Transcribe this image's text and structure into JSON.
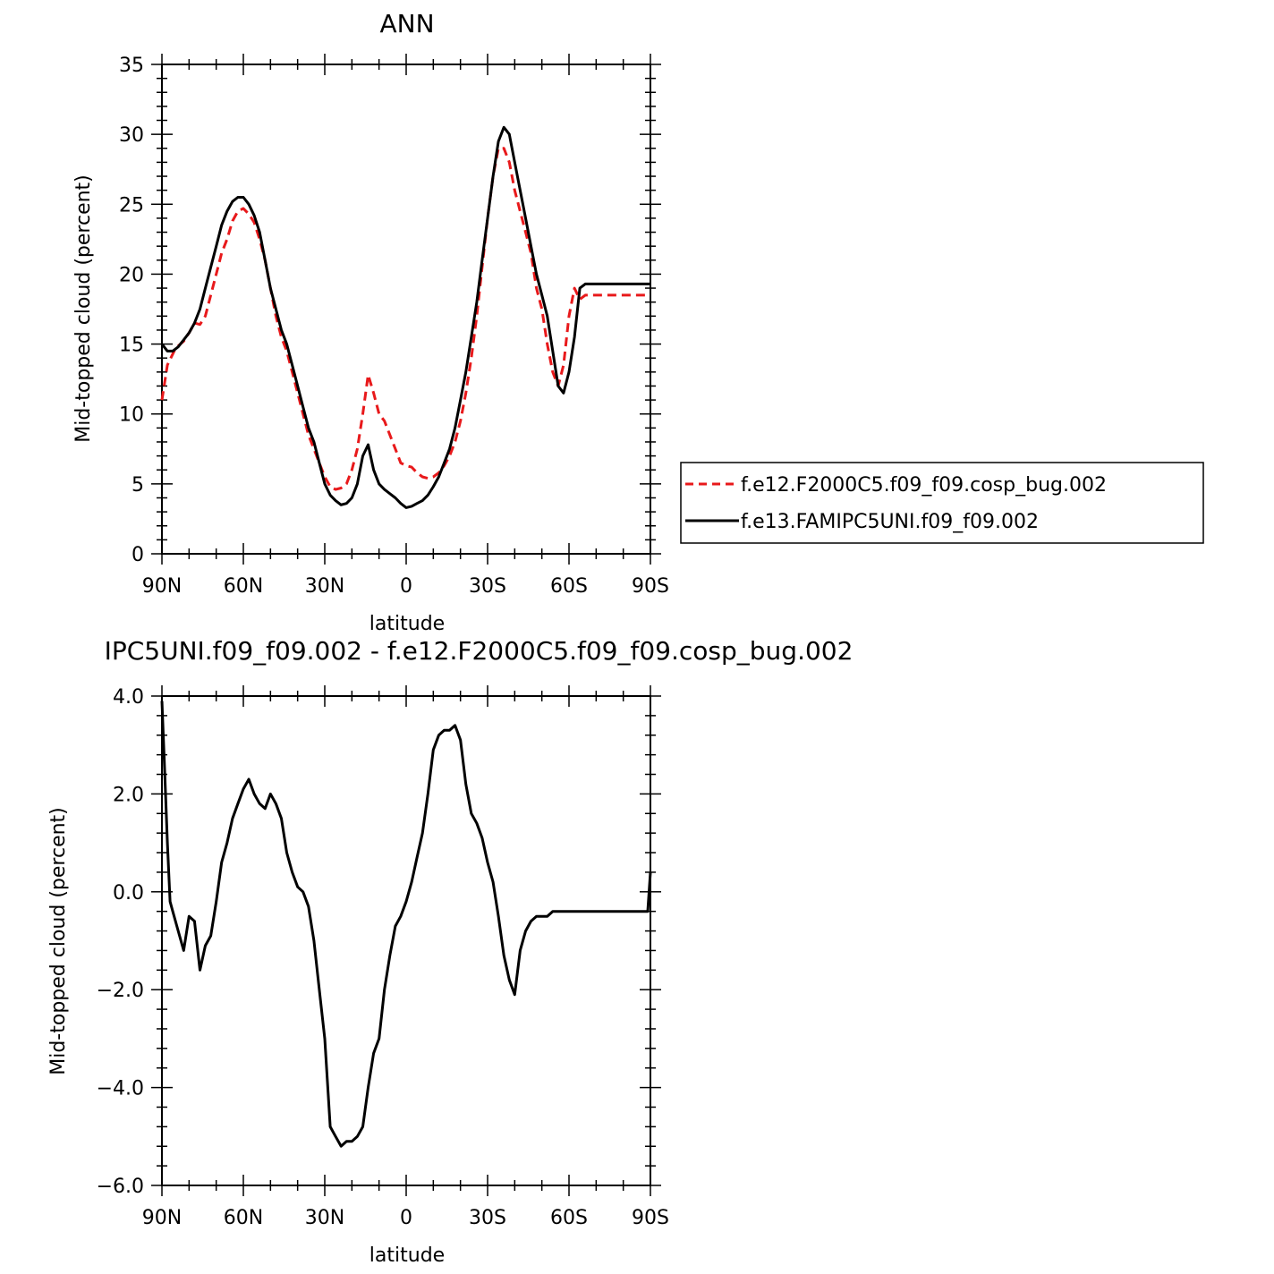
{
  "chart_data": [
    {
      "type": "line",
      "title": "ANN",
      "xlabel": "latitude",
      "ylabel": "Mid-topped cloud (percent)",
      "xlim": [
        -90,
        90
      ],
      "ylim": [
        0,
        35
      ],
      "xticks": [
        -90,
        -60,
        -30,
        0,
        30,
        60,
        90
      ],
      "xtick_labels": [
        "90N",
        "60N",
        "30N",
        "0",
        "30S",
        "60S",
        "90S"
      ],
      "yticks": [
        0,
        5,
        10,
        15,
        20,
        25,
        30,
        35
      ],
      "ytick_labels": [
        "0",
        "5",
        "10",
        "15",
        "20",
        "25",
        "30",
        "35"
      ],
      "legend": {
        "position": "right",
        "entries": [
          {
            "label": "f.e12.F2000C5.f09_f09.cosp_bug.002",
            "color": "#e8191b",
            "dash": "dashed"
          },
          {
            "label": "f.e13.FAMIPC5UNI.f09_f09.002",
            "color": "#000000",
            "dash": "solid"
          }
        ]
      },
      "series": [
        {
          "name": "f.e12.F2000C5.f09_f09.cosp_bug.002",
          "color": "#e8191b",
          "dash": "dashed",
          "x": [
            -90,
            -88,
            -85,
            -82,
            -80,
            -78,
            -76,
            -74,
            -72,
            -70,
            -68,
            -66,
            -64,
            -62,
            -60,
            -58,
            -56,
            -54,
            -52,
            -50,
            -48,
            -46,
            -44,
            -42,
            -40,
            -38,
            -36,
            -34,
            -32,
            -30,
            -28,
            -26,
            -24,
            -22,
            -20,
            -18,
            -16,
            -14,
            -12,
            -10,
            -8,
            -6,
            -4,
            -2,
            0,
            2,
            4,
            6,
            8,
            10,
            12,
            14,
            16,
            18,
            20,
            22,
            24,
            26,
            28,
            30,
            32,
            34,
            36,
            38,
            40,
            42,
            44,
            46,
            48,
            50,
            52,
            54,
            56,
            58,
            60,
            62,
            64,
            66,
            68,
            70,
            72,
            74,
            76,
            78,
            80,
            82,
            84,
            86,
            88,
            90
          ],
          "y": [
            11,
            13.5,
            14.7,
            15.2,
            15.8,
            16.5,
            16.4,
            17,
            18.5,
            20,
            21.5,
            22.5,
            23.8,
            24.5,
            24.7,
            24.3,
            23.7,
            22.5,
            21,
            19,
            17,
            15.5,
            14.5,
            13,
            11.5,
            10,
            8.5,
            7.5,
            6.5,
            5.5,
            4.8,
            4.6,
            4.7,
            5,
            6,
            7.5,
            10,
            12.8,
            11.5,
            10,
            9.5,
            8.5,
            7.5,
            6.5,
            6.3,
            6.2,
            5.8,
            5.5,
            5.4,
            5.5,
            5.8,
            6.3,
            7,
            8,
            9.5,
            11.5,
            14,
            17,
            20.5,
            24,
            27,
            29,
            29,
            28,
            26,
            24.5,
            23,
            21.5,
            19,
            17.5,
            15,
            13,
            12,
            13.5,
            17,
            19,
            18.2,
            18.5,
            18.5,
            18.5,
            18.5,
            18.5,
            18.5,
            18.5,
            18.5,
            18.5,
            18.5,
            18.5,
            18.5,
            18.5
          ]
        },
        {
          "name": "f.e13.FAMIPC5UNI.f09_f09.002",
          "color": "#000000",
          "dash": "solid",
          "x": [
            -90,
            -88,
            -86,
            -84,
            -82,
            -80,
            -78,
            -76,
            -74,
            -72,
            -70,
            -68,
            -66,
            -64,
            -62,
            -60,
            -58,
            -56,
            -54,
            -52,
            -50,
            -48,
            -46,
            -44,
            -42,
            -40,
            -38,
            -36,
            -34,
            -32,
            -30,
            -28,
            -26,
            -24,
            -22,
            -20,
            -18,
            -16,
            -14,
            -12,
            -10,
            -8,
            -6,
            -4,
            -2,
            0,
            2,
            4,
            6,
            8,
            10,
            12,
            14,
            16,
            18,
            20,
            22,
            24,
            26,
            28,
            30,
            32,
            34,
            36,
            38,
            40,
            42,
            44,
            46,
            48,
            50,
            52,
            54,
            56,
            58,
            60,
            62,
            64,
            66,
            68,
            70,
            72,
            74,
            76,
            78,
            80,
            82,
            84,
            86,
            88,
            90
          ],
          "y": [
            15,
            14.5,
            14.5,
            14.8,
            15.3,
            15.8,
            16.5,
            17.5,
            19,
            20.5,
            22,
            23.5,
            24.5,
            25.2,
            25.5,
            25.5,
            25,
            24.2,
            23,
            21,
            19,
            17.5,
            16,
            15,
            13.5,
            12,
            10.5,
            9,
            8,
            6.5,
            5,
            4.2,
            3.8,
            3.5,
            3.6,
            4,
            5,
            7,
            7.8,
            6,
            5,
            4.6,
            4.3,
            4,
            3.6,
            3.3,
            3.4,
            3.6,
            3.8,
            4.2,
            4.8,
            5.5,
            6.5,
            7.5,
            9,
            11,
            13,
            15.5,
            18,
            21,
            24,
            27,
            29.5,
            30.5,
            30,
            28,
            26,
            24,
            22,
            20,
            18.5,
            17,
            14.5,
            12,
            11.5,
            13,
            15.5,
            19,
            19.3,
            19.3,
            19.3,
            19.3,
            19.3,
            19.3,
            19.3,
            19.3,
            19.3,
            19.3,
            19.3,
            19.3,
            19.3
          ]
        }
      ]
    },
    {
      "type": "line",
      "title": "IPC5UNI.f09_f09.002 - f.e12.F2000C5.f09_f09.cosp_bug.002",
      "xlabel": "latitude",
      "ylabel": "Mid-topped cloud (percent)",
      "xlim": [
        -90,
        90
      ],
      "ylim": [
        -6,
        4
      ],
      "xticks": [
        -90,
        -60,
        -30,
        0,
        30,
        60,
        90
      ],
      "xtick_labels": [
        "90N",
        "60N",
        "30N",
        "0",
        "30S",
        "60S",
        "90S"
      ],
      "yticks": [
        -6,
        -4,
        -2,
        0,
        2,
        4
      ],
      "ytick_labels": [
        "-6.0",
        "-4.0",
        "-2.0",
        "0.0",
        "2.0",
        "4.0"
      ],
      "series": [
        {
          "color": "#000000",
          "dash": "solid",
          "x": [
            -90,
            -89,
            -88,
            -87,
            -86,
            -84,
            -82,
            -80,
            -78,
            -76,
            -74,
            -72,
            -70,
            -68,
            -66,
            -64,
            -62,
            -60,
            -58,
            -56,
            -54,
            -52,
            -50,
            -48,
            -46,
            -44,
            -42,
            -40,
            -38,
            -36,
            -34,
            -32,
            -30,
            -28,
            -26,
            -24,
            -22,
            -20,
            -18,
            -16,
            -14,
            -12,
            -10,
            -8,
            -6,
            -4,
            -2,
            0,
            2,
            4,
            6,
            8,
            10,
            12,
            14,
            16,
            18,
            20,
            22,
            24,
            26,
            28,
            30,
            32,
            34,
            36,
            38,
            40,
            42,
            44,
            46,
            48,
            50,
            52,
            54,
            56,
            58,
            60,
            62,
            64,
            66,
            68,
            70,
            72,
            74,
            76,
            78,
            80,
            82,
            84,
            86,
            88,
            89,
            90
          ],
          "y": [
            3.9,
            2.5,
            1,
            -0.2,
            -0.4,
            -0.8,
            -1.2,
            -0.5,
            -0.6,
            -1.6,
            -1.1,
            -0.9,
            -0.2,
            0.6,
            1,
            1.5,
            1.8,
            2.1,
            2.3,
            2,
            1.8,
            1.7,
            2,
            1.8,
            1.5,
            0.8,
            0.4,
            0.1,
            0,
            -0.3,
            -1,
            -2,
            -3,
            -4.8,
            -5,
            -5.2,
            -5.1,
            -5.1,
            -5,
            -4.8,
            -4,
            -3.3,
            -3,
            -2,
            -1.3,
            -0.7,
            -0.5,
            -0.2,
            0.2,
            0.7,
            1.2,
            2,
            2.9,
            3.2,
            3.3,
            3.3,
            3.4,
            3.1,
            2.2,
            1.6,
            1.4,
            1.1,
            0.6,
            0.2,
            -0.5,
            -1.3,
            -1.8,
            -2.1,
            -1.2,
            -0.8,
            -0.6,
            -0.5,
            -0.5,
            -0.5,
            -0.4,
            -0.4,
            -0.4,
            -0.4,
            -0.4,
            -0.4,
            -0.4,
            -0.4,
            -0.4,
            -0.4,
            -0.4,
            -0.4,
            -0.4,
            -0.4,
            -0.4,
            -0.4,
            -0.4,
            -0.4,
            -0.4,
            0.4
          ]
        }
      ]
    }
  ]
}
